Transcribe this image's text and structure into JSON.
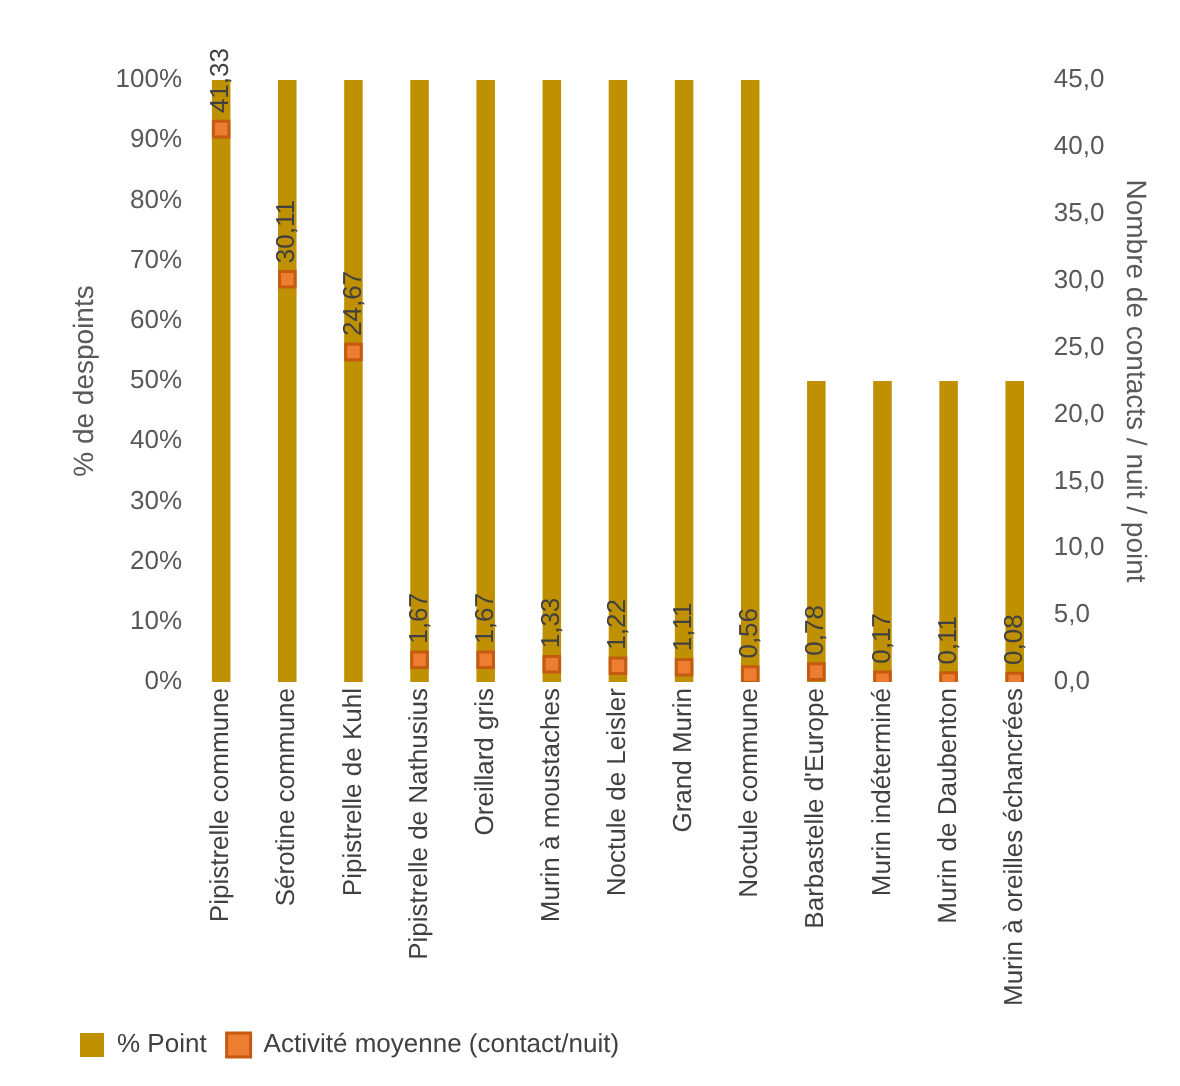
{
  "chart_data": {
    "type": "bar",
    "ylabel": "% de despoints",
    "y2label": "Nombre de contacts / nuit / point",
    "categories": [
      "Pipistrelle commune",
      "Sérotine commune",
      "Pipistrelle de Kuhl",
      "Pipistrelle de Nathusius",
      "Oreillard gris",
      "Murin à moustaches",
      "Noctule de Leisler",
      "Grand Murin",
      "Noctule commune",
      "Barbastelle d'Europe",
      "Murin indéterminé",
      "Murin de Daubenton",
      "Murin à oreilles échancrées"
    ],
    "series": [
      {
        "name": "% Point",
        "color": "#bf9000",
        "values": [
          100,
          100,
          100,
          100,
          100,
          100,
          100,
          100,
          100,
          50,
          50,
          50,
          50
        ]
      },
      {
        "name": "Activité moyenne (contact/nuit)",
        "type": "scatter",
        "axis": "y2",
        "color": "#ed7d31",
        "values": [
          41.33,
          30.11,
          24.67,
          1.67,
          1.67,
          1.33,
          1.22,
          1.11,
          0.56,
          0.78,
          0.17,
          0.11,
          0.08
        ],
        "value_labels": [
          "41,33",
          "30,11",
          "24,67",
          "1,67",
          "1,67",
          "1,33",
          "1,22",
          "1,11",
          "0,56",
          "0,78",
          "0,17",
          "0,11",
          "0,08"
        ]
      }
    ],
    "ylim": [
      0,
      100
    ],
    "yticks": [
      {
        "value": 0,
        "label": "0%"
      },
      {
        "value": 10,
        "label": "10%"
      },
      {
        "value": 20,
        "label": "20%"
      },
      {
        "value": 30,
        "label": "30%"
      },
      {
        "value": 40,
        "label": "40%"
      },
      {
        "value": 50,
        "label": "50%"
      },
      {
        "value": 60,
        "label": "60%"
      },
      {
        "value": 70,
        "label": "70%"
      },
      {
        "value": 80,
        "label": "80%"
      },
      {
        "value": 90,
        "label": "90%"
      },
      {
        "value": 100,
        "label": "100%"
      }
    ],
    "y2lim": [
      0,
      45
    ],
    "y2ticks": [
      {
        "value": 0,
        "label": "0,0"
      },
      {
        "value": 5,
        "label": "5,0"
      },
      {
        "value": 10,
        "label": "10,0"
      },
      {
        "value": 15,
        "label": "15,0"
      },
      {
        "value": 20,
        "label": "20,0"
      },
      {
        "value": 25,
        "label": "25,0"
      },
      {
        "value": 30,
        "label": "30,0"
      },
      {
        "value": 35,
        "label": "35,0"
      },
      {
        "value": 40,
        "label": "40,0"
      },
      {
        "value": 45,
        "label": "45,0"
      }
    ],
    "marker": "square",
    "grid": false,
    "legend": "bottom left"
  }
}
